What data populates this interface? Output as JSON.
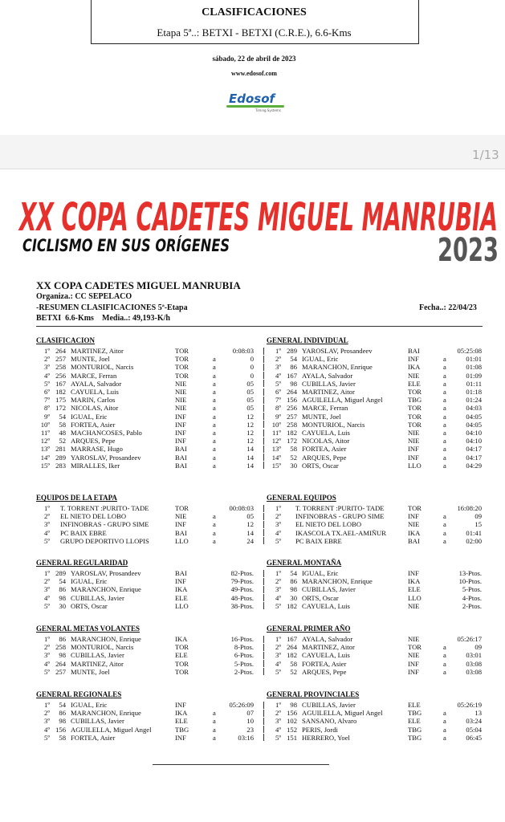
{
  "header": {
    "title": "CLASIFICACIONES",
    "stage": "Etapa 5ª..: BETXI - BETXI (C.R.E.), 6.6-Kms",
    "date": "sábado, 22 de abril de 2023",
    "url": "www.edosof.com",
    "logo": "Edosof",
    "logo_sub": "Timing Systems"
  },
  "pager": "1/13",
  "banner": {
    "title": "XX COPA CADETES MIGUEL MANRUBIA",
    "subtitle": "CICLISMO EN SUS ORÍGENES",
    "year": "2023"
  },
  "summary": {
    "title": "XX COPA CADETES MIGUEL MANRUBIA",
    "organizer": "Organiza.: CC SEPELACO",
    "report": "-RESUMEN CLASIFICACIONES 5ª-Etapa",
    "date": "Fecha..: 22/04/23",
    "stage": "BETXI  6.6-Kms",
    "speed": "Media..: 49,193-K/h"
  },
  "sections": [
    {
      "title": "CLASIFICACION",
      "rows": [
        {
          "p": "1º",
          "n": "264",
          "r": "MARTINEZ, Aitor",
          "t": "TOR",
          "v": "0:08:03"
        },
        {
          "p": "2º",
          "n": "257",
          "r": "MUNTE, Joel",
          "t": "TOR",
          "a": "a",
          "v": "0"
        },
        {
          "p": "3º",
          "n": "258",
          "r": "MONTURIOL, Narcis",
          "t": "TOR",
          "a": "a",
          "v": "0"
        },
        {
          "p": "4º",
          "n": "256",
          "r": "MARCE, Ferran",
          "t": "TOR",
          "a": "a",
          "v": "0"
        },
        {
          "p": "5º",
          "n": "167",
          "r": "AYALA, Salvador",
          "t": "NIE",
          "a": "a",
          "v": "05"
        },
        {
          "p": "6º",
          "n": "182",
          "r": "CAYUELA, Luis",
          "t": "NIE",
          "a": "a",
          "v": "05"
        },
        {
          "p": "7º",
          "n": "175",
          "r": "MARIN, Carlos",
          "t": "NIE",
          "a": "a",
          "v": "05"
        },
        {
          "p": "8º",
          "n": "172",
          "r": "NICOLAS, Aitor",
          "t": "NIE",
          "a": "a",
          "v": "05"
        },
        {
          "p": "9º",
          "n": "54",
          "r": "IGUAL, Eric",
          "t": "INF",
          "a": "a",
          "v": "12"
        },
        {
          "p": "10º",
          "n": "58",
          "r": "FORTEA, Asier",
          "t": "INF",
          "a": "a",
          "v": "12"
        },
        {
          "p": "11º",
          "n": "48",
          "r": "MACHANCOSES, Pablo",
          "t": "INF",
          "a": "a",
          "v": "12"
        },
        {
          "p": "12º",
          "n": "52",
          "r": "ARQUES, Pepe",
          "t": "INF",
          "a": "a",
          "v": "12"
        },
        {
          "p": "13º",
          "n": "281",
          "r": "MARRASE, Hugo",
          "t": "BAI",
          "a": "a",
          "v": "14"
        },
        {
          "p": "14º",
          "n": "289",
          "r": "YAROSLAV, Prosandeev",
          "t": "BAI",
          "a": "a",
          "v": "14"
        },
        {
          "p": "15º",
          "n": "283",
          "r": "MIRALLES, Iker",
          "t": "BAI",
          "a": "a",
          "v": "14"
        }
      ]
    },
    {
      "title": "GENERAL INDIVIDUAL",
      "rows": [
        {
          "p": "1º",
          "n": "289",
          "r": "YAROSLAV, Prosandeev",
          "t": "BAI",
          "v": "05:25:08"
        },
        {
          "p": "2º",
          "n": "54",
          "r": "IGUAL, Eric",
          "t": "INF",
          "a": "a",
          "v": "01:01"
        },
        {
          "p": "3º",
          "n": "86",
          "r": "MARANCHON, Enrique",
          "t": "IKA",
          "a": "a",
          "v": "01:08"
        },
        {
          "p": "4º",
          "n": "167",
          "r": "AYALA, Salvador",
          "t": "NIE",
          "a": "a",
          "v": "01:09"
        },
        {
          "p": "5º",
          "n": "98",
          "r": "CUBILLAS, Javier",
          "t": "ELE",
          "a": "a",
          "v": "01:11"
        },
        {
          "p": "6º",
          "n": "264",
          "r": "MARTINEZ, Aitor",
          "t": "TOR",
          "a": "a",
          "v": "01:18"
        },
        {
          "p": "7º",
          "n": "156",
          "r": "AGUILELLA, Miguel Angel",
          "t": "TBG",
          "a": "a",
          "v": "01:24"
        },
        {
          "p": "8º",
          "n": "256",
          "r": "MARCE, Ferran",
          "t": "TOR",
          "a": "a",
          "v": "04:03"
        },
        {
          "p": "9º",
          "n": "257",
          "r": "MUNTE, Joel",
          "t": "TOR",
          "a": "a",
          "v": "04:05"
        },
        {
          "p": "10º",
          "n": "258",
          "r": "MONTURIOL, Narcis",
          "t": "TOR",
          "a": "a",
          "v": "04:05"
        },
        {
          "p": "11º",
          "n": "182",
          "r": "CAYUELA, Luis",
          "t": "NIE",
          "a": "a",
          "v": "04:10"
        },
        {
          "p": "12º",
          "n": "172",
          "r": "NICOLAS, Aitor",
          "t": "NIE",
          "a": "a",
          "v": "04:10"
        },
        {
          "p": "13º",
          "n": "58",
          "r": "FORTEA, Asier",
          "t": "INF",
          "a": "a",
          "v": "04:17"
        },
        {
          "p": "14º",
          "n": "52",
          "r": "ARQUES, Pepe",
          "t": "INF",
          "a": "a",
          "v": "04:17"
        },
        {
          "p": "15º",
          "n": "30",
          "r": "ORTS, Oscar",
          "t": "LLO",
          "a": "a",
          "v": "04:29"
        }
      ]
    },
    {
      "title": "EQUIPOS DE LA ETAPA",
      "rows": [
        {
          "p": "1º",
          "r": "T. TORRENT :PURITO- TADE",
          "t": "TOR",
          "v": "00:08:03"
        },
        {
          "p": "2º",
          "r": "EL NIETO DEL LOBO",
          "t": "NIE",
          "a": "a",
          "v": "05"
        },
        {
          "p": "3º",
          "r": "INFINOBRAS - GRUPO SIME",
          "t": "INF",
          "a": "a",
          "v": "12"
        },
        {
          "p": "4º",
          "r": "PC BAIX EBRE",
          "t": "BAI",
          "a": "a",
          "v": "14"
        },
        {
          "p": "5º",
          "r": "GRUPO DEPORTIVO LLOPIS",
          "t": "LLO",
          "a": "a",
          "v": "24"
        }
      ]
    },
    {
      "title": "GENERAL EQUIPOS",
      "rows": [
        {
          "p": "1º",
          "r": "T. TORRENT :PURITO- TADE",
          "t": "TOR",
          "v": "16:08:20"
        },
        {
          "p": "2º",
          "r": "INFINOBRAS - GRUPO SIME",
          "t": "INF",
          "a": "a",
          "v": "09"
        },
        {
          "p": "3º",
          "r": "EL NIETO DEL LOBO",
          "t": "NIE",
          "a": "a",
          "v": "15"
        },
        {
          "p": "4º",
          "r": "IKASCOLA TX.AEL-AMIÑUR",
          "t": "IKA",
          "a": "a",
          "v": "01:41"
        },
        {
          "p": "5º",
          "r": "PC BAIX EBRE",
          "t": "BAI",
          "a": "a",
          "v": "02:00"
        }
      ]
    },
    {
      "title": "GENERAL REGULARIDAD",
      "rows": [
        {
          "p": "1º",
          "n": "289",
          "r": "YAROSLAV, Prosandeev",
          "t": "BAI",
          "v": "82-Ptos."
        },
        {
          "p": "2º",
          "n": "54",
          "r": "IGUAL, Eric",
          "t": "INF",
          "v": "79-Ptos."
        },
        {
          "p": "3º",
          "n": "86",
          "r": "MARANCHON, Enrique",
          "t": "IKA",
          "v": "49-Ptos."
        },
        {
          "p": "4º",
          "n": "98",
          "r": "CUBILLAS, Javier",
          "t": "ELE",
          "v": "48-Ptos."
        },
        {
          "p": "5º",
          "n": "30",
          "r": "ORTS, Oscar",
          "t": "LLO",
          "v": "38-Ptos."
        }
      ]
    },
    {
      "title": "GENERAL MONTAÑA",
      "rows": [
        {
          "p": "1º",
          "n": "54",
          "r": "IGUAL, Eric",
          "t": "INF",
          "v": "13-Ptos."
        },
        {
          "p": "2º",
          "n": "86",
          "r": "MARANCHON, Enrique",
          "t": "IKA",
          "v": "10-Ptos."
        },
        {
          "p": "3º",
          "n": "98",
          "r": "CUBILLAS, Javier",
          "t": "ELE",
          "v": "5-Ptos."
        },
        {
          "p": "4º",
          "n": "30",
          "r": "ORTS, Oscar",
          "t": "LLO",
          "v": "4-Ptos."
        },
        {
          "p": "5º",
          "n": "182",
          "r": "CAYUELA, Luis",
          "t": "NIE",
          "v": "2-Ptos."
        }
      ]
    },
    {
      "title": "GENERAL METAS VOLANTES",
      "rows": [
        {
          "p": "1º",
          "n": "86",
          "r": "MARANCHON, Enrique",
          "t": "IKA",
          "v": "16-Ptos."
        },
        {
          "p": "2º",
          "n": "258",
          "r": "MONTURIOL, Narcis",
          "t": "TOR",
          "v": "8-Ptos."
        },
        {
          "p": "3º",
          "n": "98",
          "r": "CUBILLAS, Javier",
          "t": "ELE",
          "v": "6-Ptos."
        },
        {
          "p": "4º",
          "n": "264",
          "r": "MARTINEZ, Aitor",
          "t": "TOR",
          "v": "5-Ptos."
        },
        {
          "p": "5º",
          "n": "257",
          "r": "MUNTE, Joel",
          "t": "TOR",
          "v": "2-Ptos."
        }
      ]
    },
    {
      "title": "GENERAL PRIMER AÑO",
      "rows": [
        {
          "p": "1º",
          "n": "167",
          "r": "AYALA, Salvador",
          "t": "NIE",
          "v": "05:26:17"
        },
        {
          "p": "2º",
          "n": "264",
          "r": "MARTINEZ, Aitor",
          "t": "TOR",
          "a": "a",
          "v": "09"
        },
        {
          "p": "3º",
          "n": "182",
          "r": "CAYUELA, Luis",
          "t": "NIE",
          "a": "a",
          "v": "03:01"
        },
        {
          "p": "4º",
          "n": "58",
          "r": "FORTEA, Asier",
          "t": "INF",
          "a": "a",
          "v": "03:08"
        },
        {
          "p": "5º",
          "n": "52",
          "r": "ARQUES, Pepe",
          "t": "INF",
          "a": "a",
          "v": "03:08"
        }
      ]
    },
    {
      "title": "GENERAL REGIONALES",
      "rows": [
        {
          "p": "1º",
          "n": "54",
          "r": "IGUAL, Eric",
          "t": "INF",
          "v": "05:26:09"
        },
        {
          "p": "2º",
          "n": "86",
          "r": "MARANCHON, Enrique",
          "t": "IKA",
          "a": "a",
          "v": "07"
        },
        {
          "p": "3º",
          "n": "98",
          "r": "CUBILLAS, Javier",
          "t": "ELE",
          "a": "a",
          "v": "10"
        },
        {
          "p": "4º",
          "n": "156",
          "r": "AGUILELLA, Miguel Angel",
          "t": "TBG",
          "a": "a",
          "v": "23"
        },
        {
          "p": "5º",
          "n": "58",
          "r": "FORTEA, Asier",
          "t": "INF",
          "a": "a",
          "v": "03:16"
        }
      ]
    },
    {
      "title": "GENERAL PROVINCIALES",
      "rows": [
        {
          "p": "1º",
          "n": "98",
          "r": "CUBILLAS, Javier",
          "t": "ELE",
          "v": "05:26:19"
        },
        {
          "p": "2º",
          "n": "156",
          "r": "AGUILELLA, Miguel Angel",
          "t": "TBG",
          "a": "a",
          "v": "13"
        },
        {
          "p": "3º",
          "n": "102",
          "r": "SANSANO, Alvaro",
          "t": "ELE",
          "a": "a",
          "v": "03:24"
        },
        {
          "p": "4º",
          "n": "152",
          "r": "PERIS, Jordi",
          "t": "TBG",
          "a": "a",
          "v": "05:04"
        },
        {
          "p": "5º",
          "n": "151",
          "r": "HERRERO, Yoel",
          "t": "TBG",
          "a": "a",
          "v": "06:45"
        }
      ]
    }
  ]
}
